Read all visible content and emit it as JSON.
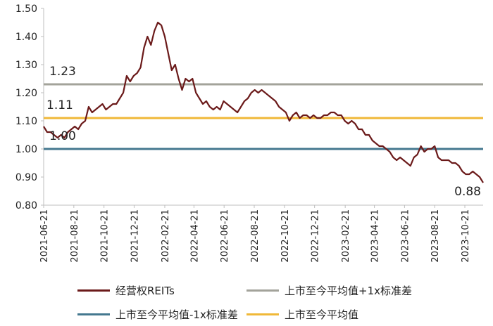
{
  "chart_data": {
    "type": "line",
    "title": "",
    "xlabel": "",
    "ylabel": "",
    "ylim": [
      0.8,
      1.5
    ],
    "yticks": [
      "0.80",
      "0.90",
      "1.00",
      "1.10",
      "1.20",
      "1.30",
      "1.40",
      "1.50"
    ],
    "xticks": [
      "2021-06-21",
      "2021-08-21",
      "2021-10-21",
      "2021-12-21",
      "2022-02-21",
      "2022-04-21",
      "2022-06-21",
      "2022-08-21",
      "2022-10-21",
      "2022-12-21",
      "2023-02-21",
      "2023-04-21",
      "2023-06-21",
      "2023-08-21",
      "2023-10-21"
    ],
    "series": [
      {
        "name": "经营权REITs",
        "color": "#6b1a1a",
        "x": [
          "2021-06-21",
          "2021-06-28",
          "2021-07-05",
          "2021-07-12",
          "2021-07-19",
          "2021-07-26",
          "2021-08-02",
          "2021-08-09",
          "2021-08-16",
          "2021-08-23",
          "2021-08-30",
          "2021-09-06",
          "2021-09-13",
          "2021-09-20",
          "2021-09-27",
          "2021-10-04",
          "2021-10-11",
          "2021-10-18",
          "2021-10-25",
          "2021-11-01",
          "2021-11-08",
          "2021-11-15",
          "2021-11-22",
          "2021-11-29",
          "2021-12-06",
          "2021-12-13",
          "2021-12-20",
          "2021-12-27",
          "2022-01-03",
          "2022-01-10",
          "2022-01-17",
          "2022-01-24",
          "2022-01-31",
          "2022-02-07",
          "2022-02-14",
          "2022-02-21",
          "2022-02-28",
          "2022-03-07",
          "2022-03-14",
          "2022-03-21",
          "2022-03-28",
          "2022-04-04",
          "2022-04-11",
          "2022-04-18",
          "2022-04-25",
          "2022-05-02",
          "2022-05-09",
          "2022-05-16",
          "2022-05-23",
          "2022-05-30",
          "2022-06-06",
          "2022-06-13",
          "2022-06-20",
          "2022-06-27",
          "2022-07-04",
          "2022-07-11",
          "2022-07-18",
          "2022-07-25",
          "2022-08-01",
          "2022-08-08",
          "2022-08-15",
          "2022-08-22",
          "2022-08-29",
          "2022-09-05",
          "2022-09-12",
          "2022-09-19",
          "2022-09-26",
          "2022-10-03",
          "2022-10-10",
          "2022-10-17",
          "2022-10-24",
          "2022-10-31",
          "2022-11-07",
          "2022-11-14",
          "2022-11-21",
          "2022-11-28",
          "2022-12-05",
          "2022-12-12",
          "2022-12-19",
          "2022-12-26",
          "2023-01-02",
          "2023-01-09",
          "2023-01-16",
          "2023-01-23",
          "2023-01-30",
          "2023-02-06",
          "2023-02-13",
          "2023-02-20",
          "2023-02-27",
          "2023-03-06",
          "2023-03-13",
          "2023-03-20",
          "2023-03-27",
          "2023-04-03",
          "2023-04-10",
          "2023-04-17",
          "2023-04-24",
          "2023-05-01",
          "2023-05-08",
          "2023-05-15",
          "2023-05-22",
          "2023-05-29",
          "2023-06-05",
          "2023-06-12",
          "2023-06-19",
          "2023-06-26",
          "2023-07-03",
          "2023-07-10",
          "2023-07-17",
          "2023-07-24",
          "2023-07-31",
          "2023-08-07",
          "2023-08-14",
          "2023-08-21",
          "2023-08-28",
          "2023-09-04",
          "2023-09-11",
          "2023-09-18",
          "2023-09-25",
          "2023-10-02",
          "2023-10-09",
          "2023-10-16",
          "2023-10-23",
          "2023-10-30",
          "2023-11-06",
          "2023-11-13",
          "2023-11-20",
          "2023-11-27"
        ],
        "values": [
          1.08,
          1.06,
          1.06,
          1.05,
          1.04,
          1.05,
          1.04,
          1.06,
          1.07,
          1.08,
          1.07,
          1.09,
          1.1,
          1.15,
          1.13,
          1.14,
          1.15,
          1.16,
          1.14,
          1.15,
          1.16,
          1.16,
          1.18,
          1.2,
          1.26,
          1.24,
          1.26,
          1.27,
          1.29,
          1.36,
          1.4,
          1.37,
          1.42,
          1.45,
          1.44,
          1.4,
          1.34,
          1.28,
          1.3,
          1.25,
          1.21,
          1.25,
          1.24,
          1.25,
          1.2,
          1.18,
          1.16,
          1.17,
          1.15,
          1.14,
          1.15,
          1.14,
          1.17,
          1.16,
          1.15,
          1.14,
          1.13,
          1.15,
          1.17,
          1.18,
          1.2,
          1.21,
          1.2,
          1.21,
          1.2,
          1.19,
          1.18,
          1.17,
          1.15,
          1.14,
          1.13,
          1.1,
          1.12,
          1.13,
          1.11,
          1.12,
          1.12,
          1.11,
          1.12,
          1.11,
          1.11,
          1.12,
          1.12,
          1.13,
          1.13,
          1.12,
          1.12,
          1.1,
          1.09,
          1.1,
          1.09,
          1.07,
          1.07,
          1.05,
          1.05,
          1.03,
          1.02,
          1.01,
          1.01,
          1.0,
          0.99,
          0.97,
          0.96,
          0.97,
          0.96,
          0.95,
          0.94,
          0.97,
          0.98,
          1.01,
          0.99,
          1.0,
          1.0,
          1.01,
          0.97,
          0.96,
          0.96,
          0.96,
          0.95,
          0.95,
          0.94,
          0.92,
          0.91,
          0.91,
          0.92,
          0.91,
          0.9,
          0.88
        ]
      },
      {
        "name": "上市至今平均值+1x标准差",
        "color": "#a3a39a",
        "value": 1.23,
        "label": "1.23"
      },
      {
        "name": "上市至今平均值-1x标准差",
        "color": "#44788f",
        "value": 1.0,
        "label": "1.00"
      },
      {
        "name": "上市至今平均值",
        "color": "#f0b838",
        "value": 1.11,
        "label": "1.11"
      }
    ],
    "end_label": "0.88",
    "legend": "bottom",
    "grid": false
  }
}
